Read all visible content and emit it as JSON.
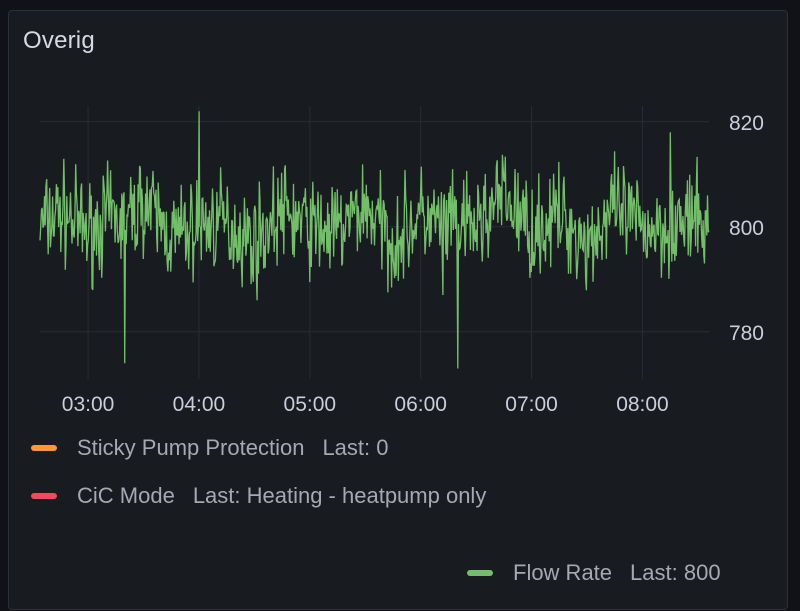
{
  "panel": {
    "title": "Overig"
  },
  "chart_data": {
    "type": "line",
    "title": "Overig",
    "xlabel": "",
    "ylabel": "",
    "x_ticks": [
      "03:00",
      "04:00",
      "05:00",
      "06:00",
      "07:00",
      "08:00"
    ],
    "x_range": [
      "02:34",
      "08:36"
    ],
    "y_ticks": [
      780,
      800,
      820
    ],
    "ylim": [
      771,
      823
    ],
    "grid": true,
    "legend_placement": "bottom",
    "series": [
      {
        "name": "Flow Rate",
        "color": "#73bf69",
        "sample_times": [
          "02:34",
          "02:45",
          "03:00",
          "03:12",
          "03:20",
          "03:30",
          "03:45",
          "04:00",
          "04:12",
          "04:30",
          "04:45",
          "05:00",
          "05:15",
          "05:30",
          "05:45",
          "06:00",
          "06:12",
          "06:20",
          "06:30",
          "06:45",
          "07:00",
          "07:15",
          "07:30",
          "07:45",
          "08:00",
          "08:15",
          "08:30",
          "08:36"
        ],
        "sample_values": [
          800,
          803,
          799,
          802,
          774,
          805,
          798,
          822,
          801,
          797,
          803,
          800,
          799,
          804,
          797,
          802,
          787,
          773,
          800,
          806,
          799,
          802,
          797,
          803,
          800,
          818,
          801,
          800
        ]
      },
      {
        "name": "Sticky Pump Protection",
        "color": "#ff9830"
      },
      {
        "name": "CiC Mode",
        "color": "#f2495c"
      }
    ]
  },
  "legend": {
    "items": [
      {
        "name": "Sticky Pump Protection",
        "last": "Last: 0",
        "color": "#ff9830"
      },
      {
        "name": "CiC Mode",
        "last": "Last: Heating - heatpump only",
        "color": "#f2495c"
      },
      {
        "name": "Flow Rate",
        "last": "Last: 800",
        "color": "#73bf69"
      }
    ]
  }
}
